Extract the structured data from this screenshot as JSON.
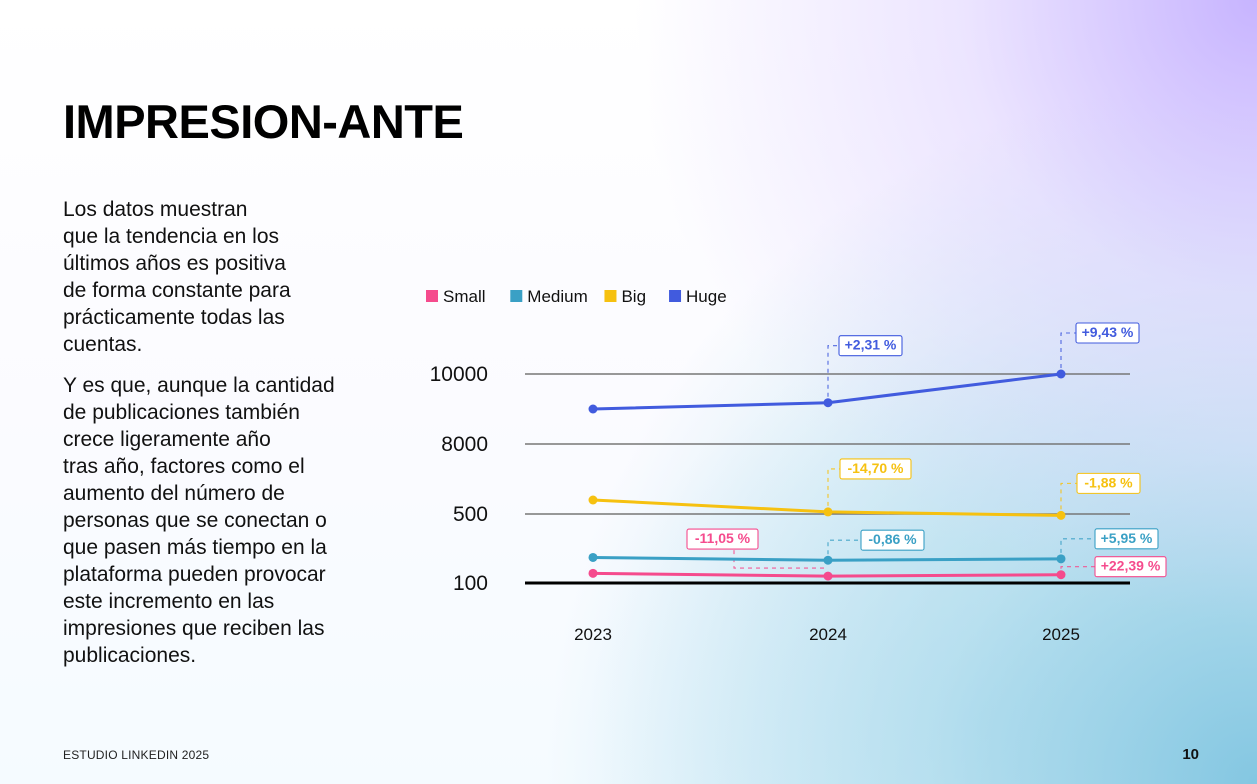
{
  "page": {
    "title": "IMPRESION-ANTE",
    "paragraphs": [
      [
        "Los datos muestran",
        "que la tendencia en los",
        "últimos años es positiva",
        "de forma constante para",
        "prácticamente todas las",
        "cuentas."
      ],
      [
        "Y es que, aunque la cantidad",
        "de publicaciones también",
        "crece ligeramente año",
        "tras año, factores como el",
        "aumento del número de",
        "personas que se conectan o",
        "que pasen más tiempo en la",
        "plataforma pueden provocar",
        "este incremento en las",
        "impresiones que reciben las",
        "publicaciones."
      ]
    ],
    "footer_left": "ESTUDIO LINKEDIN 2025",
    "page_number": "10"
  },
  "chart_data": {
    "type": "line",
    "categories": [
      "2023",
      "2024",
      "2025"
    ],
    "y_ticks": [
      "100",
      "500",
      "8000",
      "10000"
    ],
    "series": [
      {
        "name": "Small",
        "color": "#f54b8d",
        "tick_values": [
          0.14,
          0.1,
          0.12
        ],
        "labels": [
          "",
          "-11,05 %",
          "+22,39 %"
        ]
      },
      {
        "name": "Medium",
        "color": "#3aa0c5",
        "tick_values": [
          0.37,
          0.33,
          0.35
        ],
        "labels": [
          "",
          "-0,86 %",
          "+5,95 %"
        ]
      },
      {
        "name": "Big",
        "color": "#f6c110",
        "tick_values": [
          1.2,
          1.03,
          0.98
        ],
        "labels": [
          "",
          "-14,70 %",
          "-1,88 %"
        ]
      },
      {
        "name": "Huge",
        "color": "#415bde",
        "tick_values": [
          2.5,
          2.59,
          3.15
        ],
        "labels": [
          "",
          "+2,31 %",
          "+9,43 %"
        ]
      }
    ]
  }
}
